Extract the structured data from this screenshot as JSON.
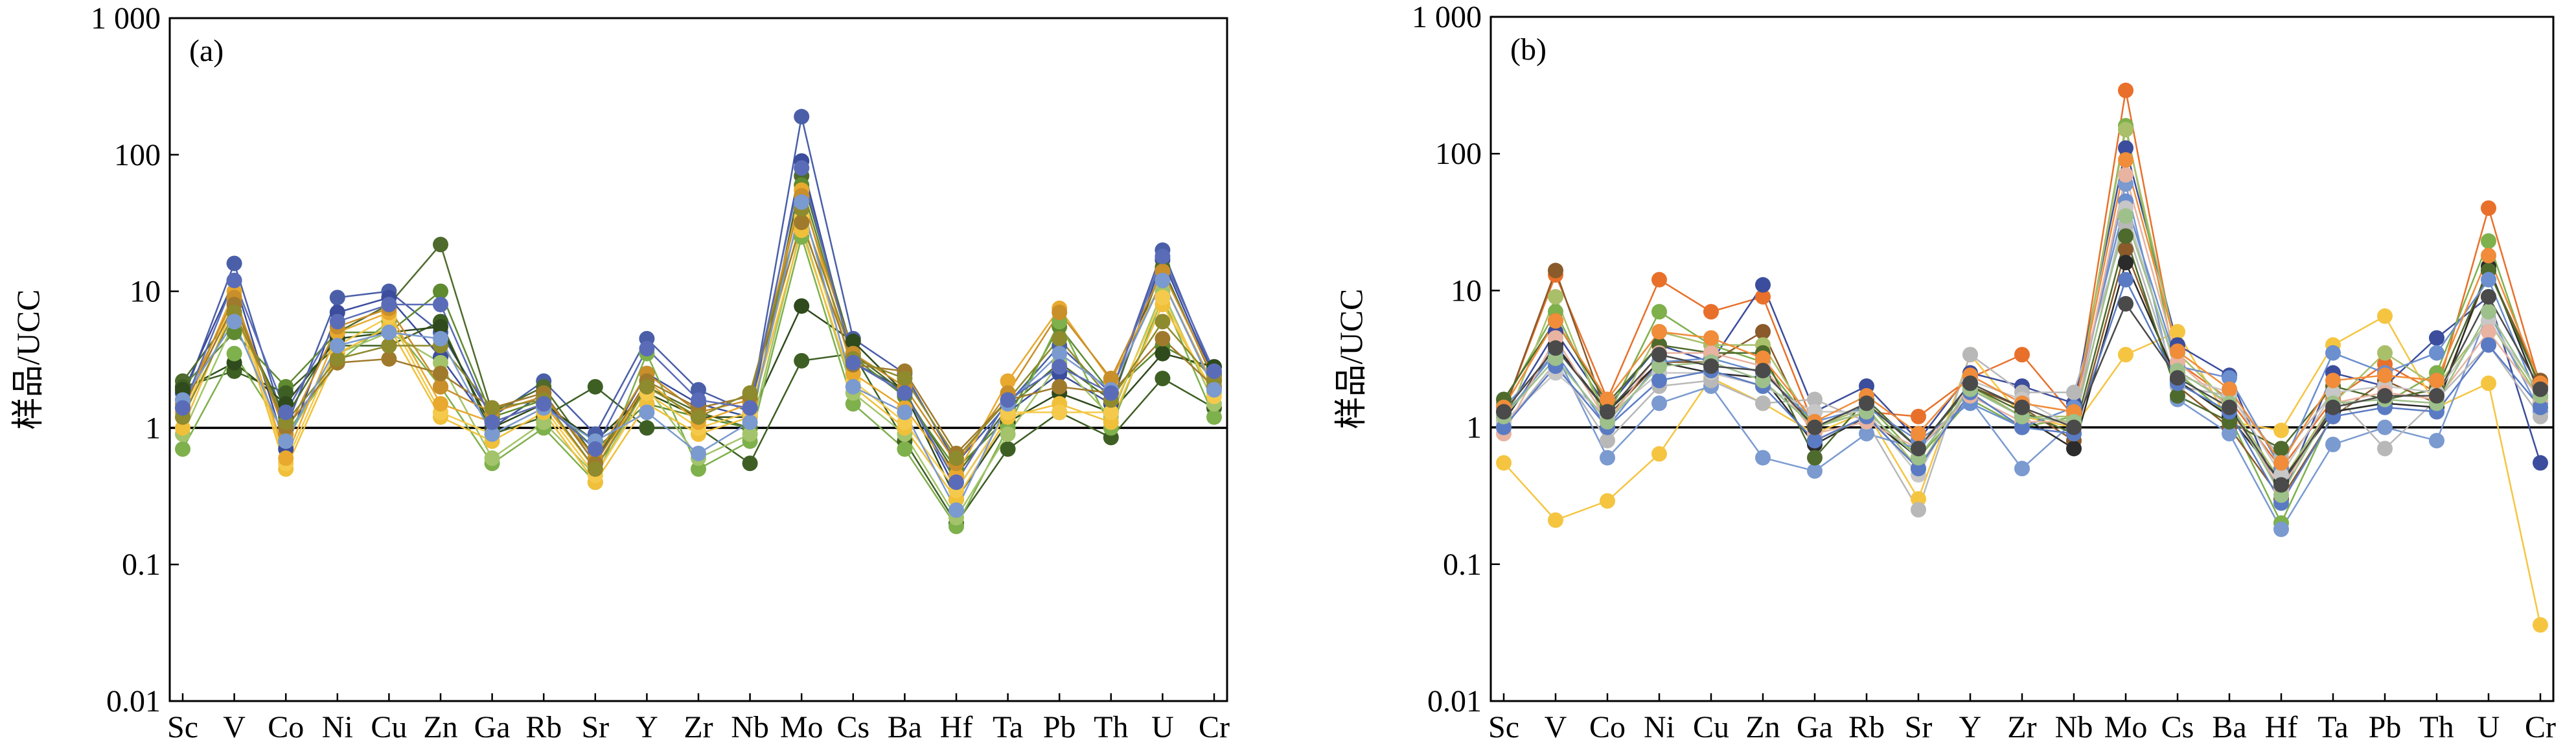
{
  "chart_data": [
    {
      "type": "line",
      "panel_label": "(a)",
      "ylabel": "样品/UCC",
      "xlabel": "",
      "yscale": "log",
      "ylim": [
        0.01,
        1000
      ],
      "yticks": [
        0.01,
        0.1,
        1,
        10,
        100,
        1000
      ],
      "ytick_labels": [
        "0.01",
        "0.1",
        "1",
        "10",
        "100",
        "1 000"
      ],
      "reference_line": 1,
      "categories": [
        "Sc",
        "V",
        "Co",
        "Ni",
        "Cu",
        "Zn",
        "Ga",
        "Rb",
        "Sr",
        "Y",
        "Zr",
        "Nb",
        "Mo",
        "Cs",
        "Ba",
        "Hf",
        "Ta",
        "Pb",
        "Th",
        "U",
        "Cr"
      ],
      "series": [
        {
          "color": "#4a5fa8",
          "values": [
            1.6,
            16,
            1.0,
            9,
            10,
            5,
            1.2,
            2.2,
            0.9,
            4.5,
            1.9,
            1.3,
            190,
            4.5,
            2.5,
            0.55,
            1.5,
            4.0,
            1.8,
            20,
            2.4
          ]
        },
        {
          "color": "#3b4d9c",
          "values": [
            1.8,
            12,
            0.7,
            7,
            9,
            3.3,
            1.0,
            1.8,
            0.55,
            2.5,
            1.5,
            1.2,
            90,
            3.0,
            1.9,
            0.35,
            1.3,
            2.5,
            1.5,
            17,
            2.3
          ]
        },
        {
          "color": "#4e6a2c",
          "values": [
            2.2,
            7,
            1.2,
            5,
            8,
            22,
            1.3,
            2.0,
            0.6,
            2.0,
            1.3,
            1.0,
            70,
            3.5,
            1.8,
            0.45,
            1.4,
            3.0,
            1.6,
            15,
            2.2
          ]
        },
        {
          "color": "#5f8a30",
          "values": [
            2.0,
            5,
            2.0,
            5,
            5,
            10,
            1.2,
            1.6,
            0.7,
            1.5,
            1.2,
            1.0,
            60,
            3.3,
            1.7,
            0.5,
            1.2,
            5.5,
            1.8,
            4,
            2.5
          ]
        },
        {
          "color": "#3e5f24",
          "values": [
            2.0,
            2.6,
            1.8,
            4,
            4,
            6,
            0.9,
            1.2,
            2.0,
            1.0,
            1.0,
            0.55,
            3.1,
            3.5,
            0.8,
            0.2,
            0.7,
            1.3,
            0.85,
            2.3,
            1.4
          ]
        },
        {
          "color": "#2f4a1c",
          "values": [
            1.9,
            3,
            1.5,
            4.5,
            5,
            5.5,
            1.0,
            1.5,
            0.8,
            1.8,
            1.2,
            1.2,
            7.8,
            4.3,
            1.8,
            0.3,
            1.1,
            1.8,
            1.3,
            3.5,
            2.8
          ]
        },
        {
          "color": "#7eb04c",
          "values": [
            0.7,
            3.5,
            0.9,
            3,
            6,
            2,
            0.55,
            1.0,
            0.4,
            3.5,
            0.5,
            0.8,
            25,
            1.5,
            0.7,
            0.19,
            1.0,
            6,
            1.0,
            9,
            1.2
          ]
        },
        {
          "color": "#a3c46a",
          "values": [
            0.9,
            6,
            0.8,
            3.5,
            5,
            3,
            0.6,
            1.1,
            0.45,
            2,
            0.6,
            0.9,
            30,
            1.8,
            0.9,
            0.22,
            0.9,
            3,
            1.2,
            10,
            1.5
          ]
        },
        {
          "color": "#f0c03a",
          "values": [
            1.0,
            8,
            0.5,
            3.5,
            5.5,
            1.2,
            0.8,
            1.3,
            0.4,
            1.5,
            0.9,
            1.2,
            28,
            2.0,
            1.0,
            0.3,
            1.2,
            1.5,
            1.1,
            8,
            1.8
          ]
        },
        {
          "color": "#f5ca4c",
          "values": [
            1.2,
            9,
            0.55,
            4,
            6.5,
            1.3,
            0.9,
            1.4,
            0.45,
            1.8,
            1.0,
            1.3,
            35,
            2.2,
            1.1,
            0.35,
            1.3,
            1.3,
            1.3,
            9,
            1.7
          ]
        },
        {
          "color": "#e8a92e",
          "values": [
            1.3,
            10,
            0.6,
            5,
            7,
            1.5,
            1.1,
            1.5,
            0.5,
            2.2,
            1.1,
            1.5,
            55,
            2.5,
            1.4,
            0.45,
            2.2,
            7.5,
            2.2,
            12,
            2.0
          ]
        },
        {
          "color": "#c98f2a",
          "values": [
            1.5,
            9,
            0.9,
            5.5,
            7.5,
            2.0,
            1.3,
            1.7,
            0.6,
            2.5,
            1.3,
            1.6,
            50,
            3.5,
            2.0,
            0.55,
            1.8,
            7,
            2.3,
            14,
            2.3
          ]
        },
        {
          "color": "#a07a2c",
          "values": [
            1.4,
            8,
            1.0,
            3,
            3.2,
            2.5,
            1.4,
            1.8,
            0.55,
            2.2,
            1.4,
            1.7,
            32,
            2.9,
            2.6,
            0.65,
            1.6,
            2.0,
            1.8,
            4.5,
            2.0
          ]
        },
        {
          "color": "#8e8a2e",
          "values": [
            1.2,
            7,
            1.1,
            3.2,
            4,
            4,
            1.4,
            1.6,
            0.5,
            2.0,
            1.2,
            1.8,
            40,
            3.2,
            2.3,
            0.6,
            1.6,
            4.5,
            1.6,
            6,
            2.2
          ]
        },
        {
          "color": "#7a9ad0",
          "values": [
            1.6,
            6,
            0.8,
            4,
            5,
            4.5,
            0.9,
            1.4,
            0.8,
            1.3,
            0.65,
            1.1,
            45,
            2.0,
            1.3,
            0.25,
            1.5,
            3.5,
            1.9,
            12,
            1.9
          ]
        },
        {
          "color": "#5a6cb8",
          "values": [
            1.4,
            12,
            1.3,
            6,
            8,
            8,
            1.1,
            1.5,
            0.7,
            3.8,
            1.6,
            1.4,
            80,
            3.0,
            1.8,
            0.4,
            1.6,
            2.8,
            1.8,
            18,
            2.6
          ]
        }
      ]
    },
    {
      "type": "line",
      "panel_label": "(b)",
      "ylabel": "样品/UCC",
      "xlabel": "",
      "yscale": "log",
      "ylim": [
        0.01,
        1000
      ],
      "yticks": [
        0.01,
        0.1,
        1,
        10,
        100,
        1000
      ],
      "ytick_labels": [
        "0.01",
        "0.1",
        "1",
        "10",
        "100",
        "1 000"
      ],
      "reference_line": 1,
      "categories": [
        "Sc",
        "V",
        "Co",
        "Ni",
        "Cu",
        "Zn",
        "Ga",
        "Rb",
        "Sr",
        "Y",
        "Zr",
        "Nb",
        "Mo",
        "Cs",
        "Ba",
        "Hf",
        "Ta",
        "Pb",
        "Th",
        "U",
        "Cr"
      ],
      "series": [
        {
          "color": "#e8702a",
          "values": [
            1.3,
            13,
            1.6,
            12,
            7,
            9,
            1.0,
            1.3,
            1.2,
            2.3,
            3.4,
            1.2,
            290,
            3.0,
            1.6,
            0.5,
            1.6,
            2.9,
            1.8,
            40,
            2.0
          ]
        },
        {
          "color": "#f5c542",
          "values": [
            0.55,
            0.21,
            0.29,
            0.64,
            2.3,
            1.5,
            0.9,
            1.3,
            0.3,
            3.4,
            1.2,
            1.0,
            3.4,
            5.0,
            1.1,
            0.95,
            4.0,
            6.5,
            1.4,
            2.1,
            0.036
          ]
        },
        {
          "color": "#3b4d9c",
          "values": [
            1.2,
            5,
            1.4,
            4,
            3,
            11,
            1.3,
            2.0,
            0.8,
            2.5,
            2.0,
            1.5,
            110,
            4.0,
            2.4,
            0.3,
            2.5,
            2.0,
            4.5,
            9,
            0.55
          ]
        },
        {
          "color": "#7eb04c",
          "values": [
            1.5,
            7,
            1.2,
            7,
            4,
            3,
            1.0,
            1.5,
            0.6,
            1.6,
            1.0,
            1.2,
            160,
            2.5,
            1.2,
            0.2,
            1.3,
            1.5,
            2.5,
            23,
            1.8
          ]
        },
        {
          "color": "#8a5a2a",
          "values": [
            1.3,
            14,
            1.2,
            3,
            3,
            5,
            0.8,
            1.2,
            0.5,
            2.0,
            1.4,
            0.8,
            20,
            2.0,
            1.0,
            0.3,
            1.2,
            2.2,
            1.5,
            14,
            2.2
          ]
        },
        {
          "color": "#a9bf6a",
          "values": [
            1.0,
            9,
            1.0,
            5,
            4,
            4,
            1.0,
            1.4,
            0.5,
            2.0,
            1.2,
            1.2,
            150,
            3.5,
            1.5,
            0.4,
            1.5,
            3.5,
            2.0,
            6,
            1.6
          ]
        },
        {
          "color": "#7a9ad0",
          "values": [
            1.4,
            3.5,
            0.6,
            1.5,
            2,
            0.6,
            0.48,
            0.9,
            0.7,
            1.6,
            0.5,
            1.1,
            60,
            1.6,
            0.9,
            0.18,
            0.75,
            1.0,
            0.8,
            7,
            1.3
          ]
        },
        {
          "color": "#b8b8b8",
          "values": [
            1.0,
            3,
            0.8,
            2,
            2.2,
            1.5,
            1.6,
            1.1,
            0.25,
            3.4,
            1.8,
            1.8,
            30,
            2.0,
            1.7,
            0.6,
            1.8,
            0.7,
            1.6,
            4,
            1.2
          ]
        },
        {
          "color": "#2b2b2b",
          "values": [
            1.1,
            4,
            1.3,
            3,
            2.5,
            2.3,
            0.75,
            1.2,
            0.6,
            1.9,
            1.2,
            0.7,
            16,
            2.2,
            1.2,
            0.4,
            1.3,
            1.5,
            1.4,
            15,
            1.7
          ]
        },
        {
          "color": "#4e6a2c",
          "values": [
            1.6,
            6,
            1.5,
            4,
            3.5,
            3.5,
            0.6,
            1.6,
            0.7,
            2.0,
            1.3,
            0.9,
            25,
            1.7,
            1.1,
            0.7,
            2.0,
            1.6,
            1.9,
            14,
            2.0
          ]
        },
        {
          "color": "#6b8fcf",
          "values": [
            1.2,
            3.5,
            1.0,
            3,
            3.2,
            2.5,
            1.1,
            1.4,
            0.8,
            1.5,
            1.0,
            1.4,
            45,
            2.8,
            2.3,
            0.5,
            3.5,
            2.5,
            3.5,
            12,
            1.5
          ]
        },
        {
          "color": "#c7c7c7",
          "values": [
            1.1,
            2.5,
            1.2,
            2.5,
            2.5,
            2.0,
            1.3,
            1.3,
            0.45,
            2.2,
            1.6,
            1.0,
            40,
            2.4,
            1.8,
            0.45,
            1.8,
            2.0,
            1.8,
            6,
            1.8
          ]
        },
        {
          "color": "#e8b3a0",
          "values": [
            0.9,
            4.5,
            1.1,
            3.5,
            3.5,
            2.8,
            0.9,
            1.1,
            0.7,
            1.7,
            1.1,
            1.1,
            70,
            3.0,
            1.4,
            0.35,
            1.5,
            1.8,
            1.6,
            5,
            1.6
          ]
        },
        {
          "color": "#5a7bc4",
          "values": [
            1.0,
            2.8,
            1.0,
            2.2,
            2.6,
            2.0,
            0.8,
            1.2,
            0.5,
            1.8,
            1.0,
            0.9,
            12,
            2.1,
            1.3,
            0.28,
            1.2,
            1.4,
            1.3,
            4,
            1.4
          ]
        },
        {
          "color": "#f08c3a",
          "values": [
            1.4,
            6,
            1.6,
            5,
            4.5,
            3.2,
            1.1,
            1.7,
            0.9,
            2.4,
            1.5,
            1.3,
            90,
            3.6,
            1.9,
            0.55,
            2.2,
            2.4,
            2.2,
            18,
            2.1
          ]
        },
        {
          "color": "#9ec08a",
          "values": [
            1.2,
            3.2,
            1.1,
            2.8,
            3.0,
            2.2,
            1.0,
            1.3,
            0.6,
            1.9,
            1.2,
            1.1,
            35,
            2.6,
            1.5,
            0.32,
            1.5,
            1.6,
            1.5,
            7,
            1.7
          ]
        },
        {
          "color": "#4a4a4a",
          "values": [
            1.3,
            3.8,
            1.3,
            3.4,
            2.8,
            2.6,
            1.0,
            1.5,
            0.7,
            2.1,
            1.4,
            1.0,
            8,
            2.3,
            1.4,
            0.38,
            1.4,
            1.7,
            1.7,
            9,
            1.9
          ]
        }
      ]
    }
  ]
}
